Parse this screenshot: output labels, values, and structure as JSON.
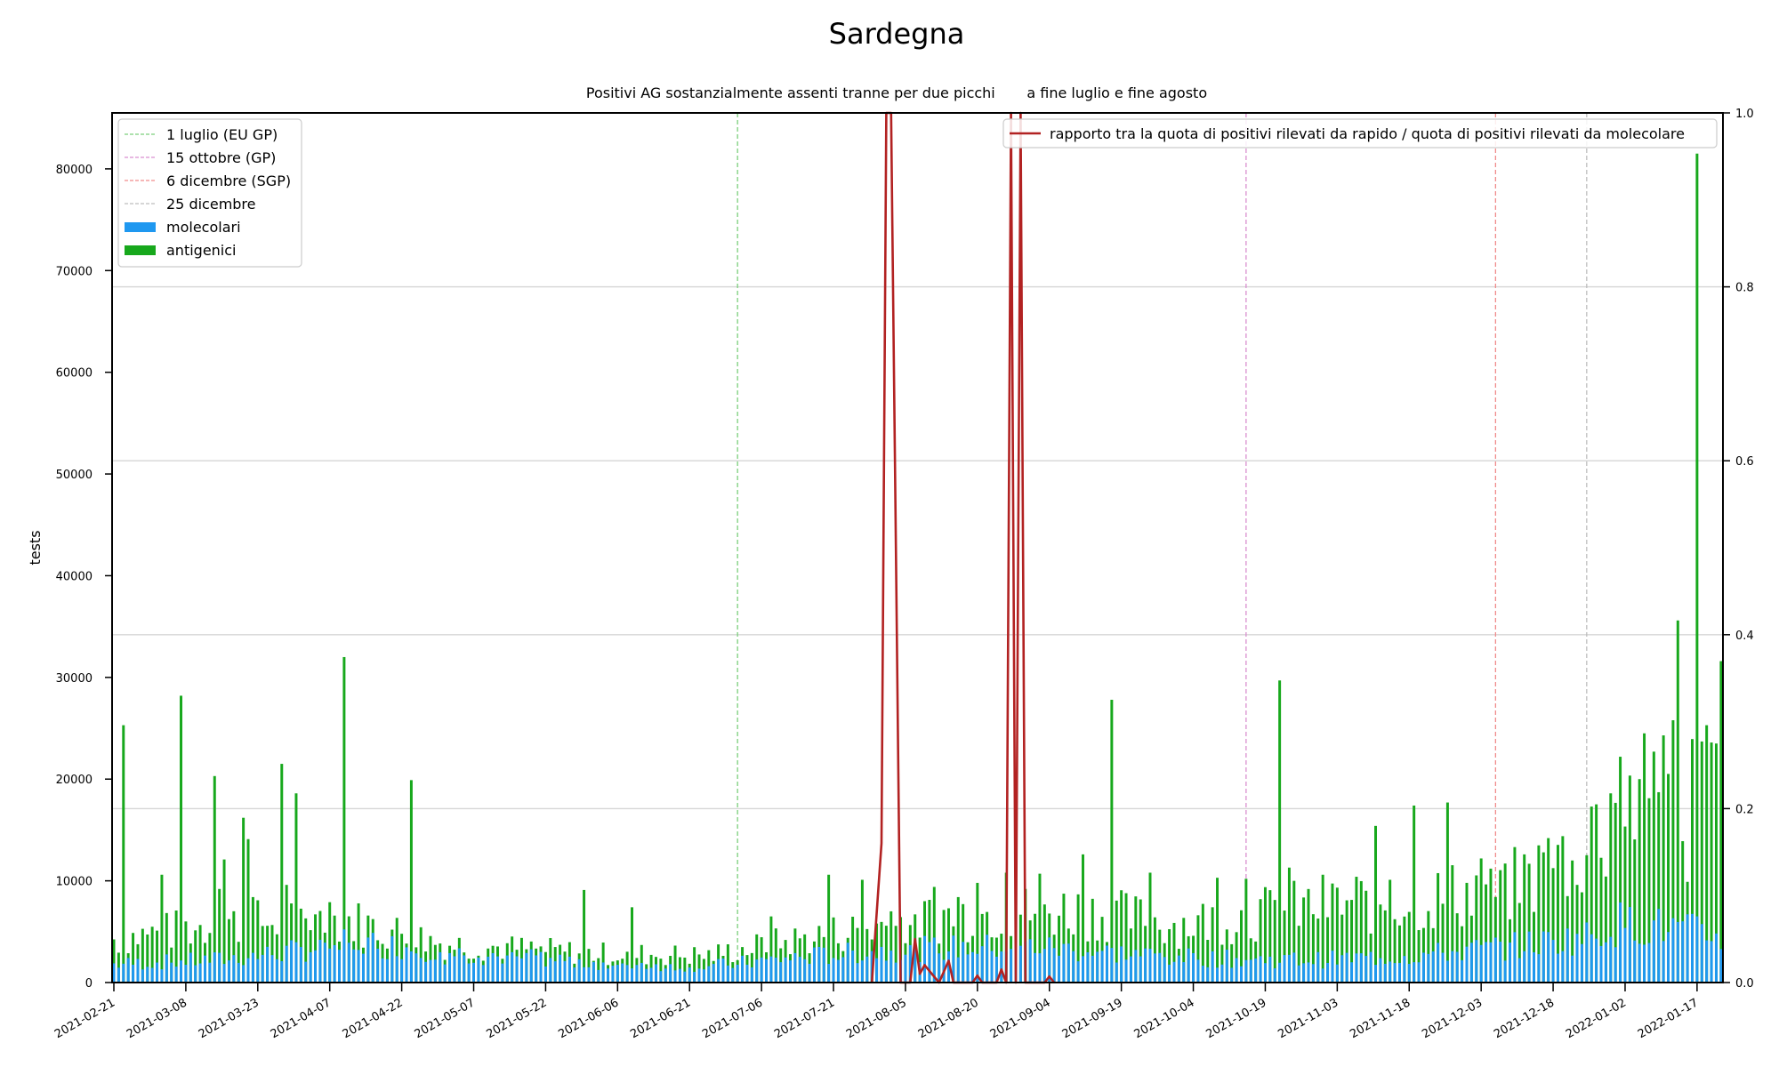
{
  "chart_data": {
    "type": "bar",
    "title": "Sardegna",
    "subtitle": "Positivi AG sostanzialmente assenti tranne per due picchi       a fine luglio e fine agosto",
    "ylabel": "tests",
    "ylim": [
      0,
      85500
    ],
    "y2lim": [
      0,
      1.0
    ],
    "yticks": [
      "0",
      "10000",
      "20000",
      "30000",
      "40000",
      "50000",
      "60000",
      "70000",
      "80000"
    ],
    "y2ticks": [
      "0.0",
      "0.2",
      "0.4",
      "0.6",
      "0.8",
      "1.0"
    ],
    "x_start": "2021-02-21",
    "x_end": "2022-01-22",
    "xticks": [
      "2021-02-21",
      "2021-03-08",
      "2021-03-23",
      "2021-04-07",
      "2021-04-22",
      "2021-05-07",
      "2021-05-22",
      "2021-06-06",
      "2021-06-21",
      "2021-07-06",
      "2021-07-21",
      "2021-08-05",
      "2021-08-20",
      "2021-09-04",
      "2021-09-19",
      "2021-10-04",
      "2021-10-19",
      "2021-11-03",
      "2021-11-18",
      "2021-12-03",
      "2021-12-18",
      "2022-01-02",
      "2022-01-17"
    ],
    "grid": "y-right",
    "legend_left_position": "top-left",
    "legend_right_position": "top-right",
    "vlines": [
      {
        "date": "2021-07-01",
        "label": "1 luglio (EU GP)",
        "color": "#7ccf7c"
      },
      {
        "date": "2021-10-15",
        "label": "15 ottobre (GP)",
        "color": "#d98fd0"
      },
      {
        "date": "2021-12-06",
        "label": "6 dicembre (SGP)",
        "color": "#f08c8c"
      },
      {
        "date": "2021-12-25",
        "label": "25 dicembre",
        "color": "#bdbdbd"
      }
    ],
    "series": [
      {
        "name": "molecolari",
        "color": "#1f98f0",
        "key": "mol"
      },
      {
        "name": "antigenici",
        "color": "#17a81c",
        "key": "ant"
      },
      {
        "name": "rapporto tra la quota di positivi rilevati da rapido / quota di positivi rilevati da molecolare",
        "color": "#b22222",
        "key": "ratio"
      }
    ],
    "anchors_mol": [
      [
        "2021-02-21",
        2000
      ],
      [
        "2021-03-15",
        2500
      ],
      [
        "2021-04-01",
        3500
      ],
      [
        "2021-04-10",
        4500
      ],
      [
        "2021-05-01",
        3500
      ],
      [
        "2021-06-01",
        2200
      ],
      [
        "2021-06-25",
        1800
      ],
      [
        "2021-07-15",
        2800
      ],
      [
        "2021-08-01",
        3500
      ],
      [
        "2021-08-15",
        3800
      ],
      [
        "2021-09-01",
        4000
      ],
      [
        "2021-09-10",
        3500
      ],
      [
        "2021-10-01",
        2800
      ],
      [
        "2021-10-15",
        2500
      ],
      [
        "2021-11-01",
        2500
      ],
      [
        "2021-11-20",
        3000
      ],
      [
        "2021-12-10",
        4000
      ],
      [
        "2021-12-25",
        5000
      ],
      [
        "2022-01-01",
        6500
      ],
      [
        "2022-01-10",
        6000
      ],
      [
        "2022-01-22",
        5000
      ]
    ],
    "anchors_ant": [
      [
        "2021-02-21",
        4500
      ],
      [
        "2021-03-15",
        6000
      ],
      [
        "2021-04-10",
        6500
      ],
      [
        "2021-05-01",
        4000
      ],
      [
        "2021-06-01",
        3000
      ],
      [
        "2021-06-25",
        2800
      ],
      [
        "2021-07-20",
        5000
      ],
      [
        "2021-08-15",
        7000
      ],
      [
        "2021-09-10",
        7500
      ],
      [
        "2021-10-01",
        6000
      ],
      [
        "2021-11-01",
        8000
      ],
      [
        "2021-11-20",
        8500
      ],
      [
        "2021-12-10",
        10000
      ],
      [
        "2021-12-25",
        14000
      ],
      [
        "2022-01-05",
        20000
      ],
      [
        "2022-01-22",
        24000
      ]
    ],
    "peaks_ant": [
      [
        "2021-02-23",
        25300
      ],
      [
        "2021-03-03",
        10600
      ],
      [
        "2021-03-07",
        28200
      ],
      [
        "2021-03-14",
        20300
      ],
      [
        "2021-03-15",
        9200
      ],
      [
        "2021-03-16",
        12100
      ],
      [
        "2021-03-20",
        16200
      ],
      [
        "2021-03-21",
        14100
      ],
      [
        "2021-03-22",
        8400
      ],
      [
        "2021-03-28",
        21500
      ],
      [
        "2021-03-29",
        9600
      ],
      [
        "2021-03-31",
        18600
      ],
      [
        "2021-04-04",
        6700
      ],
      [
        "2021-04-07",
        7900
      ],
      [
        "2021-04-10",
        32000
      ],
      [
        "2021-04-24",
        19900
      ],
      [
        "2021-05-30",
        9100
      ],
      [
        "2021-06-09",
        7400
      ],
      [
        "2021-07-08",
        6500
      ],
      [
        "2021-07-20",
        10600
      ],
      [
        "2021-07-27",
        10100
      ],
      [
        "2021-08-02",
        7000
      ],
      [
        "2021-08-07",
        6700
      ],
      [
        "2021-08-11",
        9400
      ],
      [
        "2021-08-16",
        8400
      ],
      [
        "2021-08-20",
        9800
      ],
      [
        "2021-08-26",
        10800
      ],
      [
        "2021-09-02",
        10700
      ],
      [
        "2021-09-11",
        12600
      ],
      [
        "2021-09-17",
        27800
      ],
      [
        "2021-09-25",
        10800
      ],
      [
        "2021-10-09",
        10300
      ],
      [
        "2021-10-15",
        10200
      ],
      [
        "2021-10-18",
        8200
      ],
      [
        "2021-10-22",
        29700
      ],
      [
        "2021-10-24",
        11300
      ],
      [
        "2021-10-31",
        10600
      ],
      [
        "2021-11-07",
        10400
      ],
      [
        "2021-11-11",
        15400
      ],
      [
        "2021-11-14",
        10100
      ],
      [
        "2021-11-19",
        17400
      ],
      [
        "2021-11-26",
        17700
      ],
      [
        "2021-12-03",
        12200
      ],
      [
        "2021-12-05",
        11200
      ],
      [
        "2021-12-08",
        11700
      ],
      [
        "2021-12-12",
        12600
      ],
      [
        "2021-12-16",
        12800
      ],
      [
        "2021-12-22",
        12000
      ],
      [
        "2021-12-26",
        17300
      ],
      [
        "2021-12-30",
        18600
      ],
      [
        "2022-01-01",
        22200
      ],
      [
        "2022-01-05",
        20000
      ],
      [
        "2022-01-08",
        22700
      ],
      [
        "2022-01-10",
        24300
      ],
      [
        "2022-01-13",
        35600
      ],
      [
        "2022-01-15",
        9900
      ],
      [
        "2022-01-17",
        81500
      ],
      [
        "2022-01-18",
        23700
      ],
      [
        "2022-01-19",
        25300
      ],
      [
        "2022-01-20",
        23600
      ],
      [
        "2022-01-21",
        23500
      ],
      [
        "2022-01-22",
        31600
      ]
    ],
    "ratio_points": [
      [
        "2021-07-29",
        0.0
      ],
      [
        "2021-07-31",
        0.16
      ],
      [
        "2021-08-01",
        1.0
      ],
      [
        "2021-08-02",
        1.0
      ],
      [
        "2021-08-03",
        0.5
      ],
      [
        "2021-08-04",
        0.0
      ],
      [
        "2021-08-06",
        0.0
      ],
      [
        "2021-08-07",
        0.05
      ],
      [
        "2021-08-08",
        0.01
      ],
      [
        "2021-08-09",
        0.02
      ],
      [
        "2021-08-12",
        0.0
      ],
      [
        "2021-08-14",
        0.025
      ],
      [
        "2021-08-15",
        0.0
      ],
      [
        "2021-08-19",
        0.0
      ],
      [
        "2021-08-20",
        0.008
      ],
      [
        "2021-08-21",
        0.0
      ],
      [
        "2021-08-24",
        0.0
      ],
      [
        "2021-08-25",
        0.015
      ],
      [
        "2021-08-26",
        0.0
      ],
      [
        "2021-08-27",
        1.0
      ],
      [
        "2021-08-28",
        0.0
      ],
      [
        "2021-08-29",
        1.0
      ],
      [
        "2021-08-30",
        0.0
      ],
      [
        "2021-09-03",
        0.0
      ],
      [
        "2021-09-04",
        0.007
      ],
      [
        "2021-09-05",
        0.0
      ]
    ]
  }
}
